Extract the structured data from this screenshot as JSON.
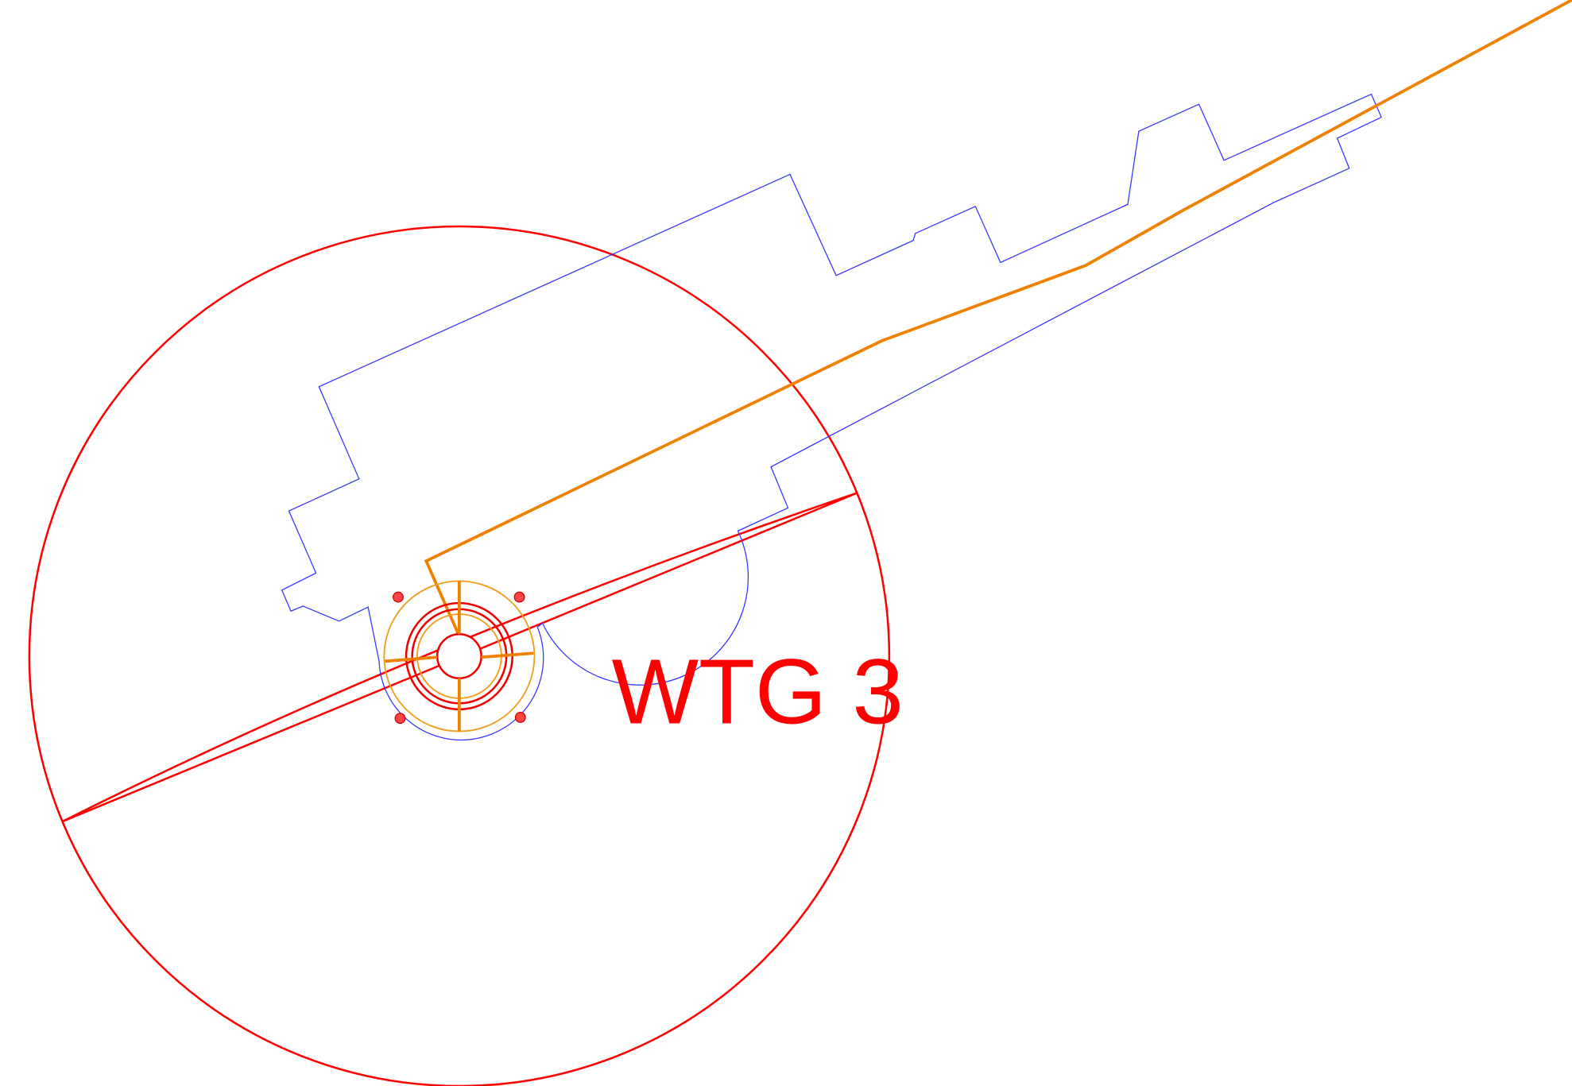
{
  "label": "WTG 3"
}
